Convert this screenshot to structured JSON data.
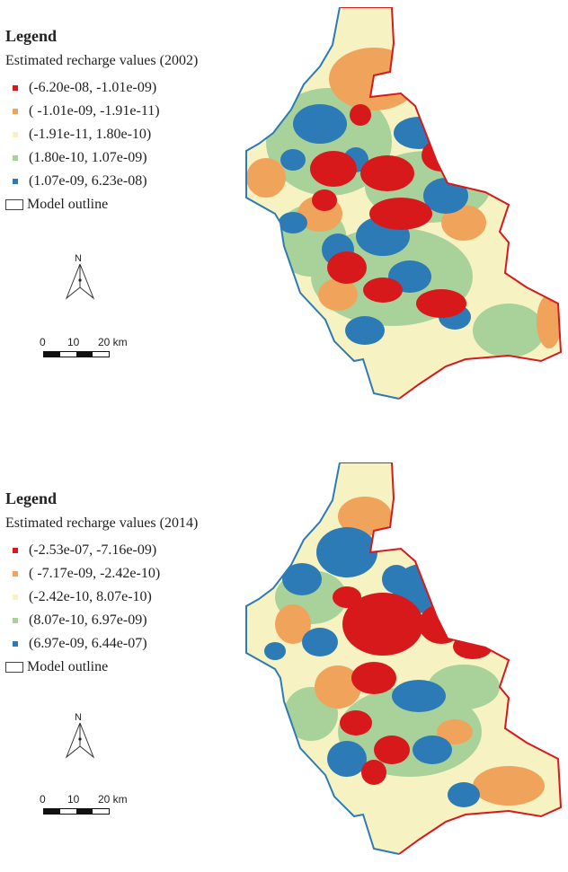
{
  "colors": {
    "class1": "#d7191c",
    "class2": "#f0a35a",
    "class3": "#f6f2c2",
    "class4": "#a8d29a",
    "class5": "#2c7bb6",
    "outline": "#444444"
  },
  "panels": [
    {
      "legend_title": "Legend",
      "subtitle": "Estimated recharge values (2002)",
      "classes": [
        {
          "label": "(-6.20e-08, -1.01e-09)",
          "color": "#d7191c"
        },
        {
          "label": "( -1.01e-09, -1.91e-11)",
          "color": "#f0a35a"
        },
        {
          "label": "(-1.91e-11, 1.80e-10)",
          "color": "#f6f2c2"
        },
        {
          "label": "(1.80e-10, 1.07e-09)",
          "color": "#a8d29a"
        },
        {
          "label": "(1.07e-09, 6.23e-08)",
          "color": "#2c7bb6"
        }
      ],
      "outline_label": "Model outline",
      "north_label": "N",
      "scale_labels": [
        "0",
        "10",
        "20 km"
      ]
    },
    {
      "legend_title": "Legend",
      "subtitle": "Estimated recharge values (2014)",
      "classes": [
        {
          "label": "(-2.53e-07, -7.16e-09)",
          "color": "#d7191c"
        },
        {
          "label": "( -7.17e-09, -2.42e-10)",
          "color": "#f0a35a"
        },
        {
          "label": "(-2.42e-10, 8.07e-10)",
          "color": "#f6f2c2"
        },
        {
          "label": "(8.07e-10, 6.97e-09)",
          "color": "#a8d29a"
        },
        {
          "label": "(6.97e-09, 6.44e-07)",
          "color": "#2c7bb6"
        }
      ],
      "outline_label": "Model outline",
      "north_label": "N",
      "scale_labels": [
        "0",
        "10",
        "20 km"
      ]
    }
  ]
}
